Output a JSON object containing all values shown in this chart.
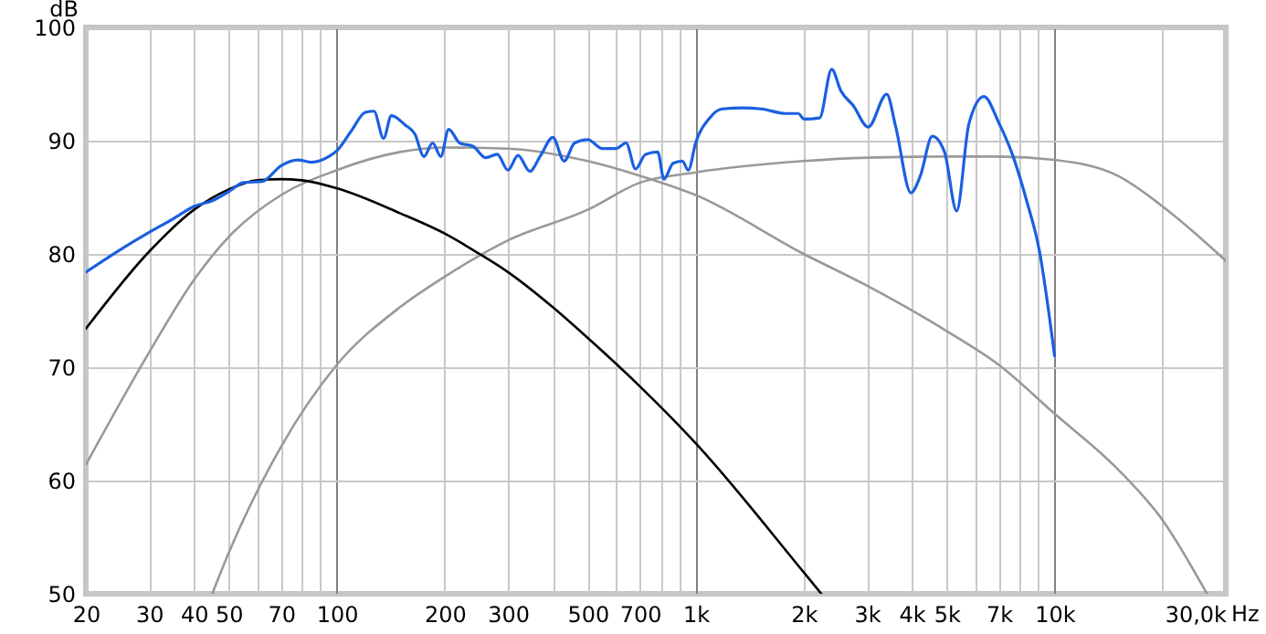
{
  "chart_data": {
    "type": "line",
    "xlabel": "Hz",
    "ylabel": "dB",
    "log": "x",
    "grid": true,
    "marker": "none",
    "line_style": "solid",
    "xlim": [
      20,
      30000
    ],
    "ylim": [
      50,
      100
    ],
    "xticks": [
      20,
      30,
      40,
      50,
      {
        "value": 60,
        "label": null
      },
      70,
      {
        "value": 80,
        "label": null
      },
      {
        "value": 90,
        "label": null
      },
      100,
      200,
      300,
      {
        "value": 400,
        "label": null
      },
      500,
      {
        "value": 600,
        "label": null
      },
      700,
      {
        "value": 800,
        "label": null
      },
      {
        "value": 900,
        "label": null
      },
      {
        "value": 1000,
        "label": "1k"
      },
      {
        "value": 2000,
        "label": "2k"
      },
      {
        "value": 3000,
        "label": "3k"
      },
      {
        "value": 4000,
        "label": "4k"
      },
      {
        "value": 5000,
        "label": "5k"
      },
      {
        "value": 6000,
        "label": null
      },
      {
        "value": 7000,
        "label": "7k"
      },
      {
        "value": 8000,
        "label": null
      },
      {
        "value": 9000,
        "label": null
      },
      {
        "value": 10000,
        "label": "10k"
      },
      {
        "value": 20000,
        "label": null
      },
      {
        "value": 30000,
        "label": "30,0k"
      }
    ],
    "yticks": [
      50,
      60,
      70,
      80,
      90,
      100
    ],
    "series": [
      {
        "color": "#999999",
        "x": [
          20,
          30,
          40,
          50,
          70,
          100,
          150,
          200,
          300,
          500,
          700,
          1000,
          2000,
          3000,
          5000,
          7000,
          10000,
          15000,
          20000,
          26600
        ],
        "values": [
          61.4,
          71.3,
          77.7,
          81.5,
          85.2,
          87.4,
          89,
          89.4,
          89.3,
          88.2,
          86.9,
          85.2,
          80,
          77.2,
          73.2,
          70.2,
          65.9,
          61,
          56.5,
          50
        ]
      },
      {
        "color": "#999999",
        "x": [
          45,
          50,
          70,
          100,
          150,
          200,
          300,
          500,
          700,
          1000,
          2000,
          3000,
          5000,
          7000,
          10000,
          15000,
          20000,
          30000
        ],
        "values": [
          50,
          53.6,
          63,
          70.2,
          75.3,
          78,
          81.2,
          83.9,
          86.3,
          87.2,
          88.2,
          88.5,
          88.6,
          88.6,
          88.3,
          86.9,
          84.2,
          79.4
        ]
      },
      {
        "color": "#000000",
        "x": [
          20,
          30,
          40,
          50,
          60,
          70,
          80,
          100,
          150,
          200,
          250,
          300,
          400,
          500,
          700,
          1000,
          2000,
          2240
        ],
        "values": [
          73.4,
          80.2,
          83.9,
          85.7,
          86.5,
          86.6,
          86.5,
          85.8,
          83.6,
          81.8,
          80,
          78.4,
          75.3,
          72.6,
          68.3,
          63.3,
          51.9,
          50
        ]
      },
      {
        "color": "#1a5fe0",
        "x": [
          20,
          25,
          30,
          35,
          40,
          45,
          50,
          55,
          62,
          70,
          78,
          85,
          95,
          100,
          110,
          120,
          127,
          135,
          142,
          155,
          165,
          175,
          185,
          195,
          205,
          220,
          240,
          260,
          280,
          300,
          320,
          345,
          370,
          400,
          430,
          460,
          500,
          550,
          600,
          640,
          680,
          725,
          784,
          816,
          865,
          918,
          954,
          1000,
          1094,
          1183,
          1357,
          1525,
          1785,
          1930,
          2007,
          2214,
          2394,
          2539,
          2748,
          3026,
          3406,
          3611,
          3979,
          4228,
          4564,
          4936,
          5336,
          5773,
          6355,
          7011,
          7586,
          8360,
          9057,
          10000
        ],
        "values": [
          78.4,
          80.4,
          81.9,
          83.1,
          84.2,
          84.7,
          85.5,
          86.3,
          86.4,
          87.8,
          88.3,
          88.1,
          88.6,
          89.1,
          90.9,
          92.5,
          92.6,
          90.2,
          92.2,
          91.4,
          90.6,
          88.6,
          89.8,
          88.6,
          91,
          89.8,
          89.5,
          88.5,
          88.8,
          87.4,
          88.7,
          87.3,
          88.7,
          90.3,
          88.2,
          89.8,
          90.1,
          89.3,
          89.3,
          89.8,
          87.5,
          88.8,
          89.0,
          86.6,
          88.0,
          88.2,
          87.4,
          89.8,
          92.0,
          92.8,
          92.9,
          92.8,
          92.4,
          92.4,
          91.9,
          92.0,
          96.3,
          94.4,
          93.1,
          91.2,
          94.1,
          91.2,
          85.4,
          86.9,
          90.4,
          89.0,
          83.8,
          91.5,
          93.9,
          91.5,
          89.0,
          84.7,
          80.4,
          71.0
        ]
      }
    ]
  }
}
